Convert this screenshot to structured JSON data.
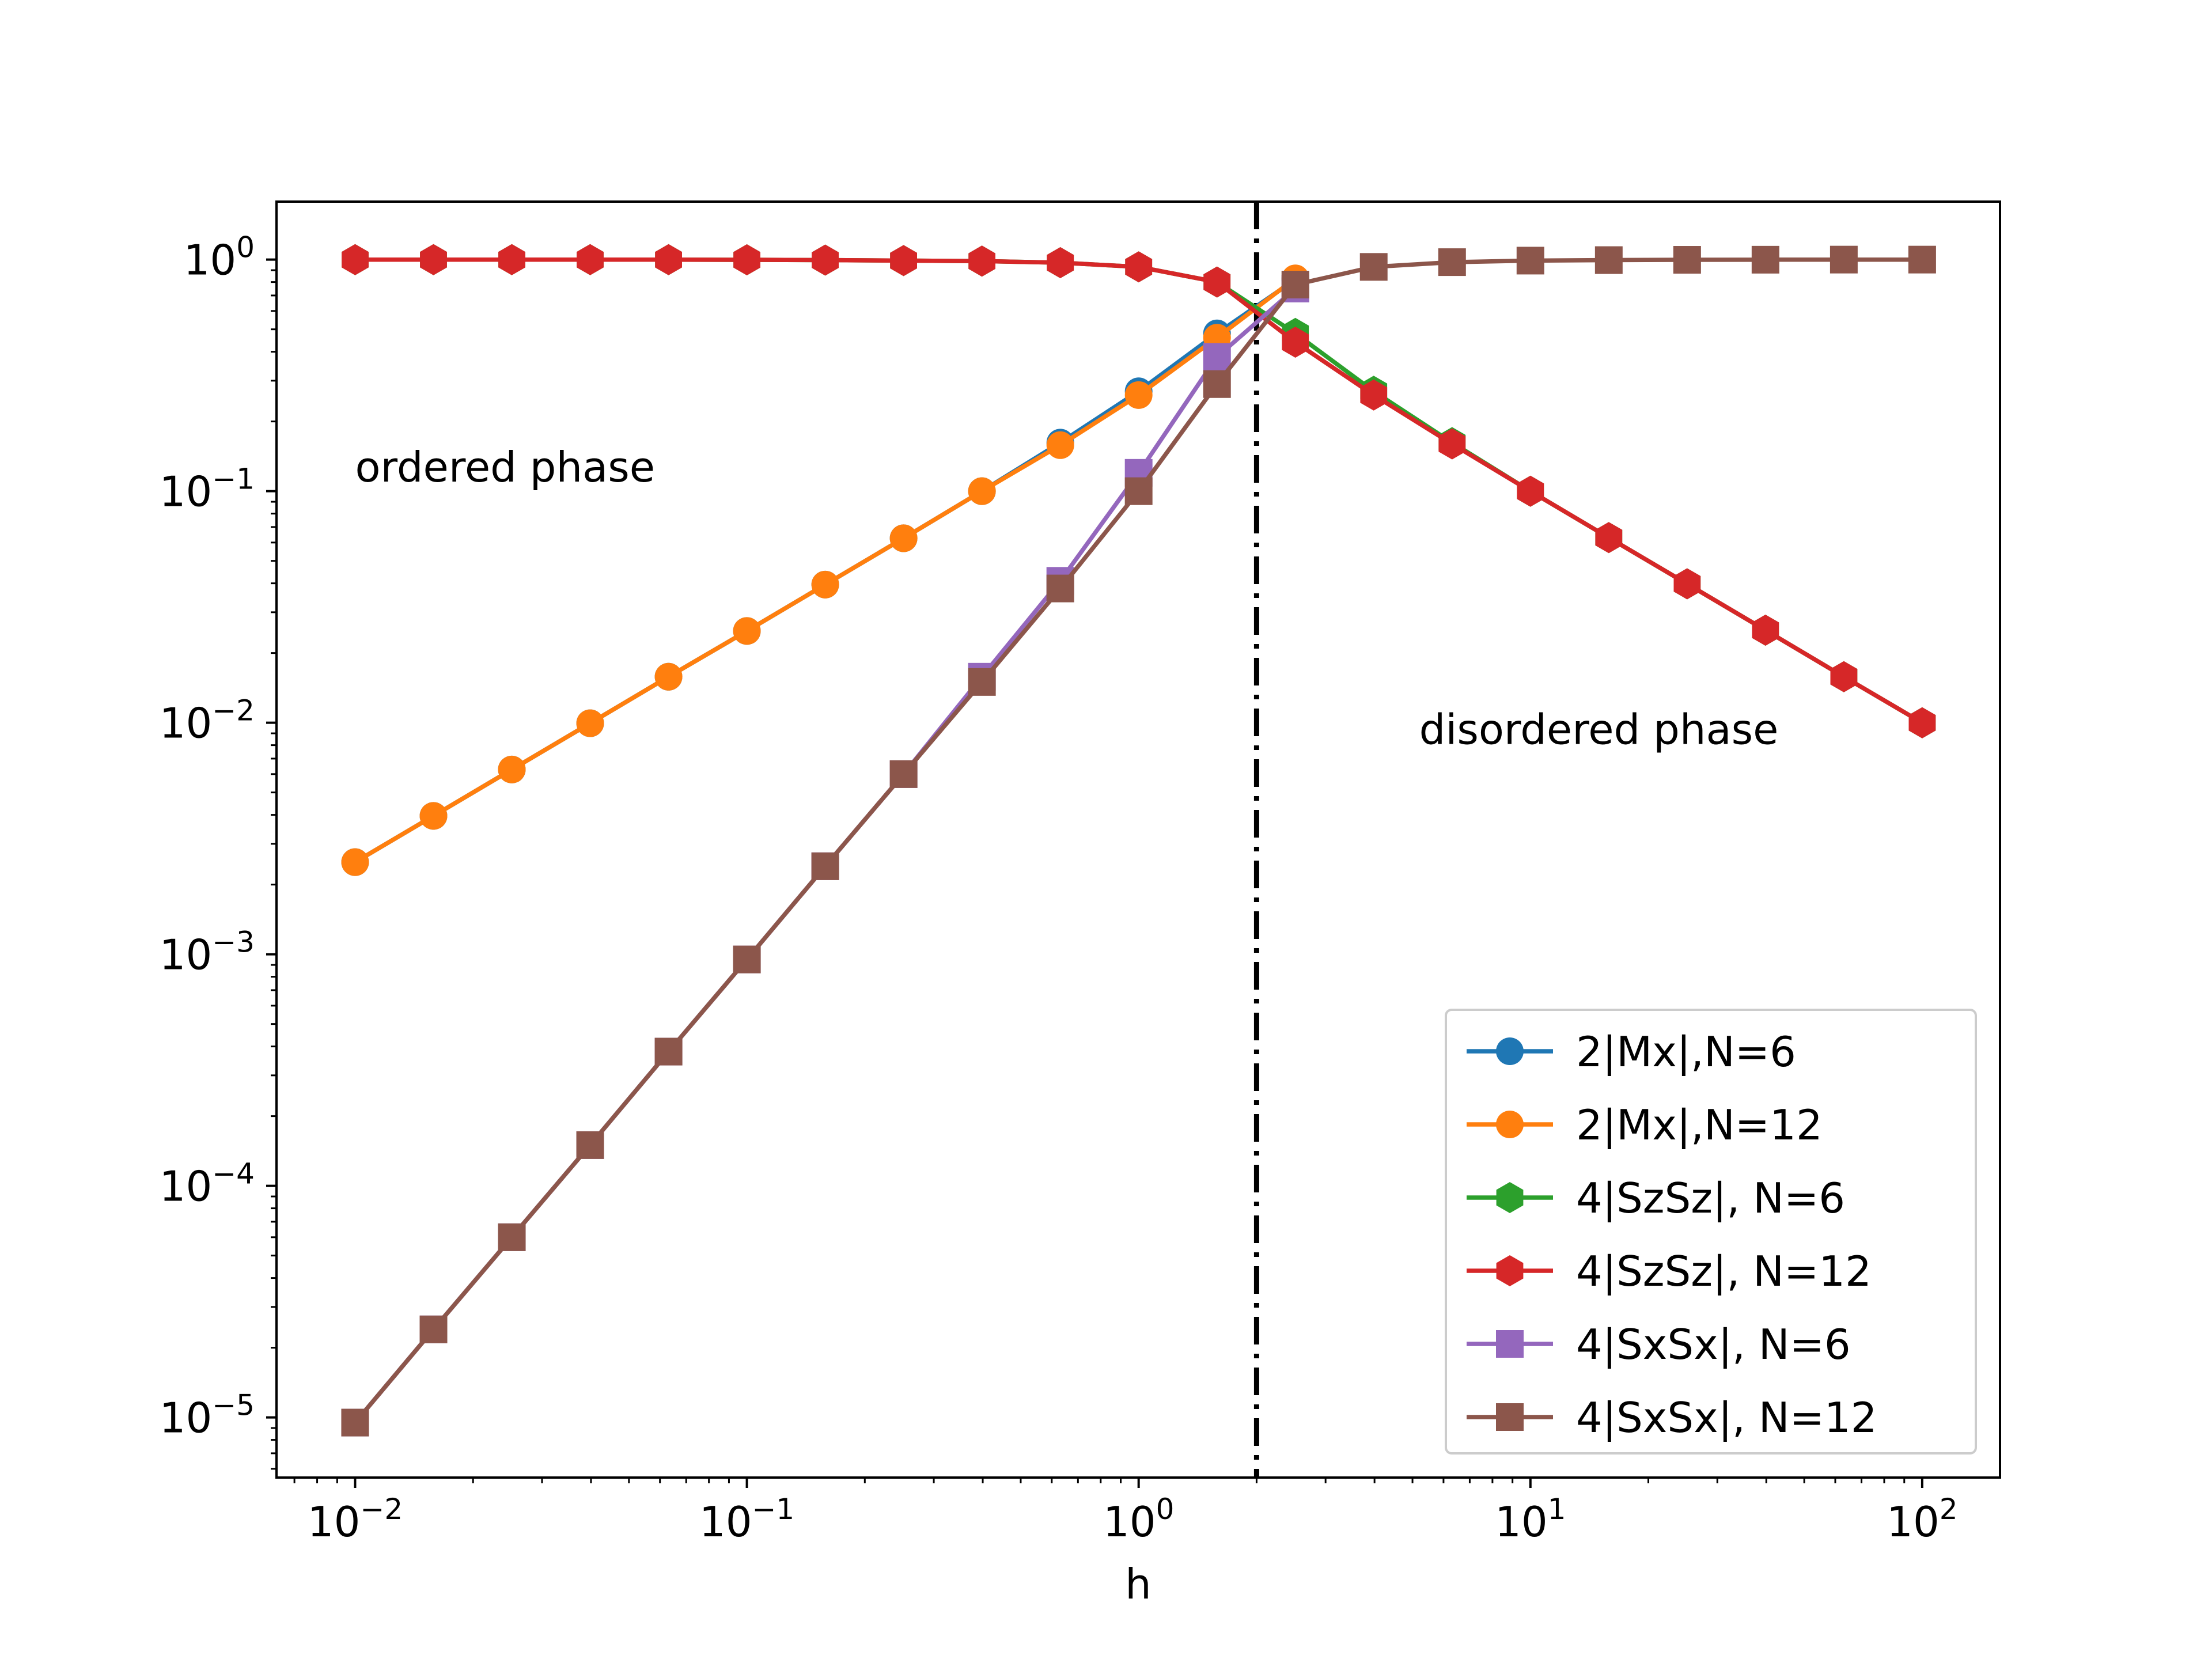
{
  "chart_data": {
    "type": "line",
    "xscale": "log",
    "yscale": "log",
    "xlabel": "h",
    "ylabel": "",
    "title": "",
    "xlim": [
      0.0063,
      158
    ],
    "ylim": [
      5.5e-06,
      1.78
    ],
    "xticks": [
      {
        "value": 0.01,
        "base": "10",
        "exp": "−2"
      },
      {
        "value": 0.1,
        "base": "10",
        "exp": "−1"
      },
      {
        "value": 1,
        "base": "10",
        "exp": "0"
      },
      {
        "value": 10,
        "base": "10",
        "exp": "1"
      },
      {
        "value": 100,
        "base": "10",
        "exp": "2"
      }
    ],
    "yticks": [
      {
        "value": 1,
        "base": "10",
        "exp": "0"
      },
      {
        "value": 0.1,
        "base": "10",
        "exp": "−1"
      },
      {
        "value": 0.01,
        "base": "10",
        "exp": "−2"
      },
      {
        "value": 0.001,
        "base": "10",
        "exp": "−3"
      },
      {
        "value": 0.0001,
        "base": "10",
        "exp": "−4"
      },
      {
        "value": 1e-05,
        "base": "10",
        "exp": "−5"
      }
    ],
    "critical_line": {
      "x": 2,
      "style": "dash-dot",
      "color": "#000000"
    },
    "annotations": [
      {
        "text": "ordered phase",
        "x": 0.01,
        "y": 0.11
      },
      {
        "text": "disordered phase",
        "x": 5.2,
        "y": 0.0081
      }
    ],
    "legend": {
      "position": "lower right"
    },
    "x": [
      0.01,
      0.01585,
      0.02512,
      0.03981,
      0.0631,
      0.1,
      0.1585,
      0.2512,
      0.3981,
      0.631,
      1.0,
      1.585,
      2.512,
      3.981,
      6.31,
      10.0,
      15.85,
      25.12,
      39.81,
      63.1,
      100.0
    ],
    "series": [
      {
        "name": "2|Mx|,N=6",
        "color": "#1f77b4",
        "marker": "circle",
        "values": [
          0.0025,
          0.00396,
          0.00628,
          0.00995,
          0.0158,
          0.0249,
          0.0395,
          0.0626,
          0.1,
          0.162,
          0.27,
          0.48,
          0.82,
          null,
          null,
          null,
          null,
          null,
          null,
          null,
          null
        ]
      },
      {
        "name": "2|Mx|,N=12",
        "color": "#ff7f0e",
        "marker": "circle",
        "values": [
          0.0025,
          0.00396,
          0.00628,
          0.00995,
          0.0158,
          0.0249,
          0.0395,
          0.0626,
          0.1,
          0.158,
          0.26,
          0.46,
          0.83,
          null,
          null,
          null,
          null,
          null,
          null,
          null,
          null
        ]
      },
      {
        "name": "4|SzSz|, N=6",
        "color": "#2ca02c",
        "marker": "hexagon",
        "values": [
          1.0,
          1.0,
          1.0,
          1.0,
          0.999,
          0.998,
          0.995,
          0.99,
          0.985,
          0.97,
          0.93,
          0.8,
          0.48,
          0.27,
          0.162,
          0.1,
          0.063,
          0.0398,
          0.0251,
          0.0158,
          0.01
        ]
      },
      {
        "name": "4|SzSz|, N=12",
        "color": "#d62728",
        "marker": "hexagon",
        "values": [
          1.0,
          1.0,
          1.0,
          1.0,
          0.999,
          0.998,
          0.995,
          0.99,
          0.985,
          0.97,
          0.93,
          0.8,
          0.44,
          0.26,
          0.16,
          0.1,
          0.063,
          0.0398,
          0.0251,
          0.0158,
          0.01
        ]
      },
      {
        "name": "4|SxSx|, N=6",
        "color": "#9467bd",
        "marker": "square",
        "values": [
          9.5e-06,
          2.4e-05,
          6e-05,
          0.00015,
          0.00038,
          0.00095,
          0.0024,
          0.006,
          0.0158,
          0.041,
          0.12,
          0.38,
          0.75,
          null,
          null,
          null,
          null,
          null,
          null,
          null,
          null
        ]
      },
      {
        "name": "4|SxSx|, N=12",
        "color": "#8c564b",
        "marker": "square",
        "values": [
          9.5e-06,
          2.4e-05,
          6e-05,
          0.00015,
          0.00038,
          0.00095,
          0.0024,
          0.006,
          0.015,
          0.038,
          0.1,
          0.29,
          0.78,
          0.93,
          0.975,
          0.99,
          0.995,
          0.998,
          0.999,
          1.0,
          1.0
        ]
      }
    ]
  }
}
